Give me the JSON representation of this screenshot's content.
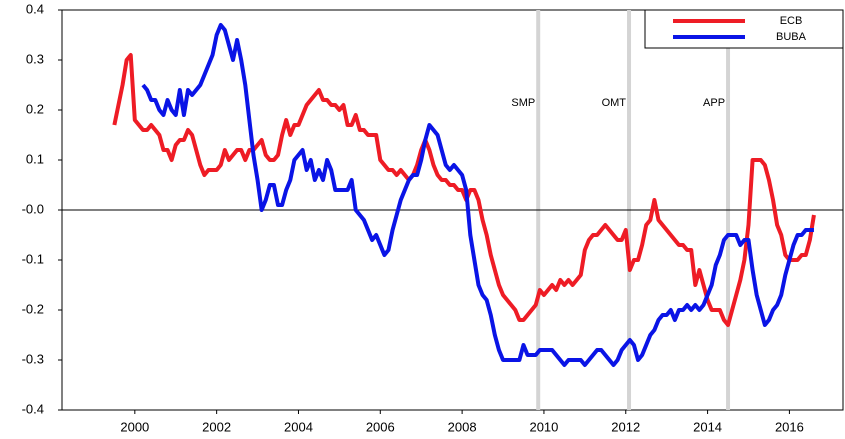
{
  "chart_data": {
    "type": "line",
    "x": [
      1999.5,
      1999.6,
      1999.7,
      1999.8,
      1999.9,
      2000.0,
      2000.1,
      2000.2,
      2000.3,
      2000.4,
      2000.5,
      2000.6,
      2000.7,
      2000.8,
      2000.9,
      2001.0,
      2001.1,
      2001.2,
      2001.3,
      2001.4,
      2001.5,
      2001.6,
      2001.7,
      2001.8,
      2001.9,
      2002.0,
      2002.1,
      2002.2,
      2002.3,
      2002.4,
      2002.5,
      2002.6,
      2002.7,
      2002.8,
      2002.9,
      2003.0,
      2003.1,
      2003.2,
      2003.3,
      2003.4,
      2003.5,
      2003.6,
      2003.7,
      2003.8,
      2003.9,
      2004.0,
      2004.1,
      2004.2,
      2004.3,
      2004.4,
      2004.5,
      2004.6,
      2004.7,
      2004.8,
      2004.9,
      2005.0,
      2005.1,
      2005.2,
      2005.3,
      2005.4,
      2005.5,
      2005.6,
      2005.7,
      2005.8,
      2005.9,
      2006.0,
      2006.1,
      2006.2,
      2006.3,
      2006.4,
      2006.5,
      2006.6,
      2006.7,
      2006.8,
      2006.9,
      2007.0,
      2007.1,
      2007.2,
      2007.3,
      2007.4,
      2007.5,
      2007.6,
      2007.7,
      2007.8,
      2007.9,
      2008.0,
      2008.1,
      2008.2,
      2008.3,
      2008.4,
      2008.5,
      2008.6,
      2008.7,
      2008.8,
      2008.9,
      2009.0,
      2009.1,
      2009.2,
      2009.3,
      2009.4,
      2009.5,
      2009.6,
      2009.7,
      2009.8,
      2009.9,
      2010.0,
      2010.1,
      2010.2,
      2010.3,
      2010.4,
      2010.5,
      2010.6,
      2010.7,
      2010.8,
      2010.9,
      2011.0,
      2011.1,
      2011.2,
      2011.3,
      2011.4,
      2011.5,
      2011.6,
      2011.7,
      2011.8,
      2011.9,
      2012.0,
      2012.1,
      2012.2,
      2012.3,
      2012.4,
      2012.5,
      2012.6,
      2012.7,
      2012.8,
      2012.9,
      2013.0,
      2013.1,
      2013.2,
      2013.3,
      2013.4,
      2013.5,
      2013.6,
      2013.7,
      2013.8,
      2013.9,
      2014.0,
      2014.1,
      2014.2,
      2014.3,
      2014.4,
      2014.5,
      2014.6,
      2014.7,
      2014.8,
      2014.9,
      2015.0,
      2015.1,
      2015.2,
      2015.3,
      2015.4,
      2015.5,
      2015.6,
      2015.7,
      2015.8,
      2015.9,
      2016.0,
      2016.1,
      2016.2,
      2016.3,
      2016.4,
      2016.5,
      2016.6
    ],
    "series": [
      {
        "name": "ECB",
        "color": "#ee1c25",
        "values": [
          0.17,
          0.21,
          0.25,
          0.3,
          0.31,
          0.18,
          0.17,
          0.16,
          0.16,
          0.17,
          0.16,
          0.15,
          0.12,
          0.12,
          0.1,
          0.13,
          0.14,
          0.14,
          0.16,
          0.15,
          0.12,
          0.09,
          0.07,
          0.08,
          0.08,
          0.08,
          0.09,
          0.12,
          0.1,
          0.11,
          0.12,
          0.12,
          0.1,
          0.12,
          0.12,
          0.13,
          0.14,
          0.11,
          0.1,
          0.1,
          0.11,
          0.15,
          0.18,
          0.15,
          0.17,
          0.17,
          0.19,
          0.21,
          0.22,
          0.23,
          0.24,
          0.22,
          0.22,
          0.21,
          0.21,
          0.2,
          0.21,
          0.17,
          0.17,
          0.19,
          0.16,
          0.16,
          0.15,
          0.15,
          0.15,
          0.1,
          0.09,
          0.08,
          0.08,
          0.07,
          0.08,
          0.07,
          0.06,
          0.07,
          0.09,
          0.12,
          0.14,
          0.12,
          0.09,
          0.07,
          0.06,
          0.06,
          0.05,
          0.05,
          0.04,
          0.04,
          0.02,
          0.04,
          0.04,
          0.02,
          -0.02,
          -0.05,
          -0.09,
          -0.12,
          -0.15,
          -0.17,
          -0.18,
          -0.19,
          -0.2,
          -0.22,
          -0.22,
          -0.21,
          -0.2,
          -0.19,
          -0.16,
          -0.17,
          -0.16,
          -0.15,
          -0.16,
          -0.14,
          -0.15,
          -0.14,
          -0.15,
          -0.14,
          -0.13,
          -0.08,
          -0.06,
          -0.05,
          -0.05,
          -0.04,
          -0.03,
          -0.04,
          -0.05,
          -0.06,
          -0.06,
          -0.04,
          -0.12,
          -0.1,
          -0.1,
          -0.07,
          -0.03,
          -0.02,
          0.02,
          -0.02,
          -0.03,
          -0.04,
          -0.05,
          -0.06,
          -0.07,
          -0.07,
          -0.08,
          -0.08,
          -0.15,
          -0.12,
          -0.15,
          -0.18,
          -0.2,
          -0.2,
          -0.2,
          -0.22,
          -0.23,
          -0.2,
          -0.17,
          -0.14,
          -0.1,
          -0.03,
          0.1,
          0.1,
          0.1,
          0.09,
          0.06,
          0.02,
          -0.03,
          -0.05,
          -0.09,
          -0.1,
          -0.1,
          -0.1,
          -0.09,
          -0.09,
          -0.06,
          -0.01
        ]
      },
      {
        "name": "BUBA",
        "color": "#0a14e6",
        "values": [
          null,
          null,
          null,
          null,
          null,
          null,
          null,
          0.25,
          0.24,
          0.22,
          0.22,
          0.2,
          0.19,
          0.22,
          0.2,
          0.19,
          0.24,
          0.19,
          0.24,
          0.23,
          0.24,
          0.25,
          0.27,
          0.29,
          0.31,
          0.35,
          0.37,
          0.36,
          0.33,
          0.3,
          0.34,
          0.3,
          0.25,
          0.18,
          0.11,
          0.06,
          0.0,
          0.02,
          0.05,
          0.05,
          0.01,
          0.01,
          0.04,
          0.06,
          0.1,
          0.11,
          0.12,
          0.08,
          0.1,
          0.06,
          0.08,
          0.06,
          0.1,
          0.08,
          0.04,
          0.04,
          0.04,
          0.04,
          0.06,
          0.0,
          -0.01,
          -0.02,
          -0.04,
          -0.06,
          -0.05,
          -0.07,
          -0.09,
          -0.08,
          -0.04,
          -0.01,
          0.02,
          0.04,
          0.06,
          0.07,
          0.07,
          0.1,
          0.14,
          0.17,
          0.16,
          0.15,
          0.12,
          0.09,
          0.08,
          0.09,
          0.08,
          0.07,
          0.04,
          -0.05,
          -0.1,
          -0.15,
          -0.17,
          -0.18,
          -0.21,
          -0.25,
          -0.28,
          -0.3,
          -0.3,
          -0.3,
          -0.3,
          -0.3,
          -0.27,
          -0.29,
          -0.29,
          -0.29,
          -0.28,
          -0.28,
          -0.28,
          -0.28,
          -0.29,
          -0.3,
          -0.31,
          -0.3,
          -0.3,
          -0.3,
          -0.3,
          -0.31,
          -0.3,
          -0.29,
          -0.28,
          -0.28,
          -0.29,
          -0.3,
          -0.31,
          -0.3,
          -0.28,
          -0.27,
          -0.26,
          -0.27,
          -0.3,
          -0.29,
          -0.27,
          -0.25,
          -0.24,
          -0.22,
          -0.21,
          -0.21,
          -0.2,
          -0.22,
          -0.2,
          -0.2,
          -0.19,
          -0.2,
          -0.19,
          -0.2,
          -0.19,
          -0.17,
          -0.15,
          -0.11,
          -0.09,
          -0.06,
          -0.05,
          -0.05,
          -0.05,
          -0.07,
          -0.06,
          -0.06,
          -0.12,
          -0.17,
          -0.2,
          -0.23,
          -0.22,
          -0.2,
          -0.19,
          -0.17,
          -0.13,
          -0.1,
          -0.07,
          -0.05,
          -0.05,
          -0.04,
          -0.04,
          -0.04
        ]
      }
    ],
    "xlim": [
      1998.22,
      2017.31
    ],
    "ylim": [
      -0.4,
      0.4
    ],
    "xticks": [
      2000,
      2002,
      2004,
      2006,
      2008,
      2010,
      2012,
      2014,
      2016
    ],
    "yticks": [
      0.4,
      0.3,
      0.2,
      0.1,
      {
        "value": 0,
        "label": "-0.0"
      },
      -0.1,
      -0.2,
      -0.3,
      -0.4
    ],
    "zero_line": true,
    "events": [
      {
        "label": "SMP",
        "x": 2009.86
      },
      {
        "label": "OMT",
        "x": 2012.08
      },
      {
        "label": "APP",
        "x": 2014.5
      }
    ],
    "legend": "upper right"
  }
}
